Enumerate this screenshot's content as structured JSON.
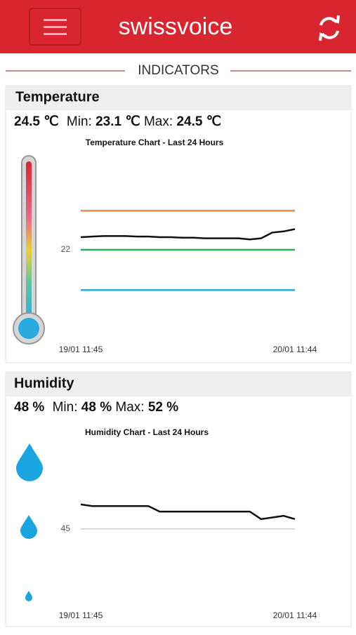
{
  "header": {
    "logo": "swissvoice"
  },
  "section_title": "INDICATORS",
  "temperature": {
    "title": "Temperature",
    "current": "24.5 ℃",
    "min_label": "Min:",
    "min": "23.1 ℃",
    "max_label": "Max:",
    "max": "24.5 ℃",
    "chart": {
      "type": "line",
      "title": "Temperature Chart - Last 24 Hours",
      "categories": [
        "19/01 11:45",
        null,
        null,
        null,
        null,
        null,
        null,
        null,
        null,
        null,
        null,
        null,
        null,
        null,
        null,
        null,
        null,
        null,
        null,
        "20/01 11:44"
      ],
      "values": [
        23.1,
        23.15,
        23.2,
        23.2,
        23.2,
        23.15,
        23.15,
        23.1,
        23.1,
        23.05,
        23.05,
        23.0,
        23.0,
        23.0,
        23.0,
        22.9,
        23.0,
        23.5,
        23.6,
        23.8
      ],
      "color": "#111111",
      "thresholds": [
        {
          "value": 25.4,
          "color": "#f08c3a"
        },
        {
          "value": 22,
          "color": "#2eaa5c"
        },
        {
          "value": 18.5,
          "color": "#29abe2"
        }
      ],
      "ylim": [
        14,
        30
      ],
      "yticks": [
        22
      ],
      "grid": false
    }
  },
  "humidity": {
    "title": "Humidity",
    "current": "48 %",
    "min_label": "Min:",
    "min": "48 %",
    "max_label": "Max:",
    "max": "52 %",
    "chart": {
      "type": "line",
      "title": "Humidity Chart - Last 24 Hours",
      "categories": [
        "19/01 11:45",
        null,
        null,
        null,
        null,
        null,
        null,
        null,
        null,
        null,
        null,
        null,
        null,
        null,
        null,
        null,
        null,
        null,
        null,
        "20/01 11:44"
      ],
      "values": [
        52.5,
        52,
        52,
        52,
        52,
        52,
        52,
        50.3,
        50.3,
        50.3,
        50.3,
        50.3,
        50.3,
        50.3,
        50.3,
        50.3,
        48,
        48.5,
        49,
        48
      ],
      "color": "#111111",
      "grid_color": "#cccccc",
      "ylim": [
        22,
        69
      ],
      "yticks": [
        45
      ],
      "grid": true
    }
  }
}
